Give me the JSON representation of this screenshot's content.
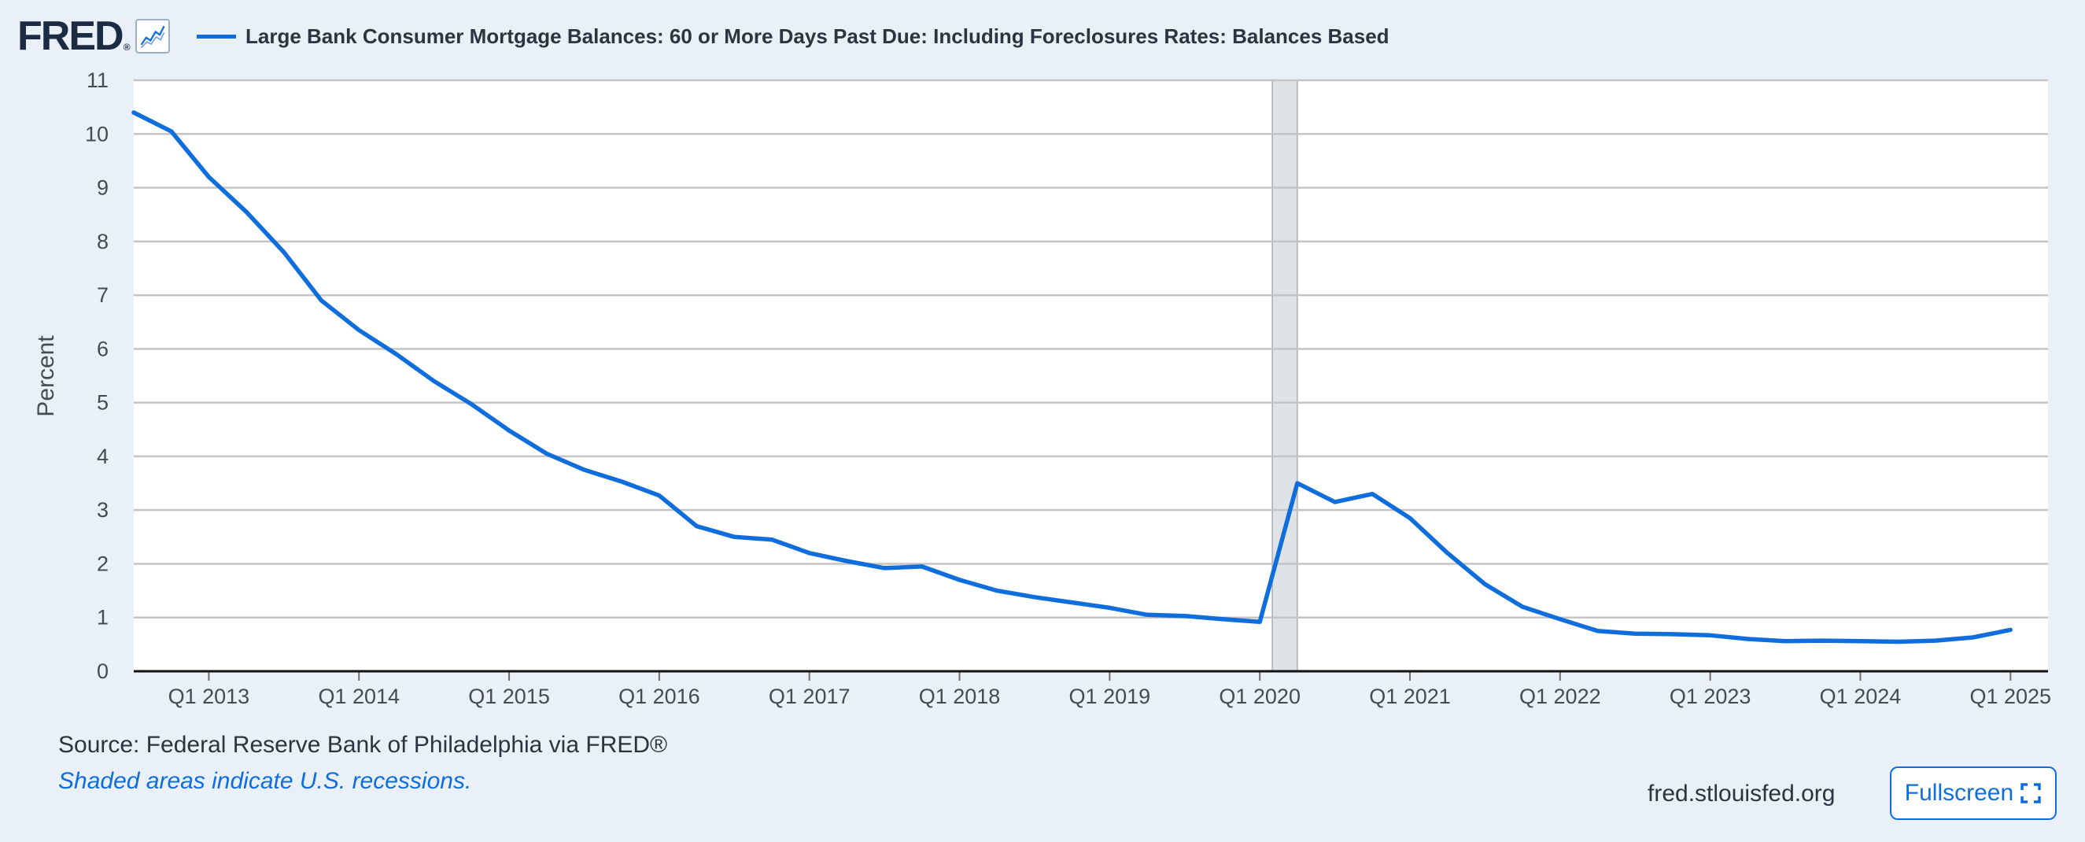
{
  "header": {
    "logo_text": "FRED",
    "logo_mark": "®",
    "graph_icon": "line-graph-icon"
  },
  "legend": {
    "label": "Large Bank Consumer Mortgage Balances: 60 or More Days Past Due: Including Foreclosures Rates: Balances Based",
    "color": "#0f6ddc"
  },
  "footer": {
    "source": "Source: Federal Reserve Bank of Philadelphia via FRED®",
    "recession_note": "Shaded areas indicate U.S. recessions.",
    "site": "fred.stlouisfed.org",
    "fullscreen_label": "Fullscreen",
    "fullscreen_icon": "expand-corners-icon"
  },
  "colors": {
    "background": "#e9f0f8",
    "plot_background": "#ffffff",
    "series": "#0f6ddc",
    "grid": "#c4c4c4",
    "recession_fill": "#dfe3e8"
  },
  "chart_data": {
    "type": "line",
    "xlabel": "",
    "ylabel": "Percent",
    "ylim": [
      0,
      11
    ],
    "yticks": [
      0,
      1,
      2,
      3,
      4,
      5,
      6,
      7,
      8,
      9,
      10,
      11
    ],
    "xlim": [
      "2012-07",
      "2025-04"
    ],
    "xticks": [
      {
        "label": "Q1 2013",
        "value": "2013-01"
      },
      {
        "label": "Q1 2014",
        "value": "2014-01"
      },
      {
        "label": "Q1 2015",
        "value": "2015-01"
      },
      {
        "label": "Q1 2016",
        "value": "2016-01"
      },
      {
        "label": "Q1 2017",
        "value": "2017-01"
      },
      {
        "label": "Q1 2018",
        "value": "2018-01"
      },
      {
        "label": "Q1 2019",
        "value": "2019-01"
      },
      {
        "label": "Q1 2020",
        "value": "2020-01"
      },
      {
        "label": "Q1 2021",
        "value": "2021-01"
      },
      {
        "label": "Q1 2022",
        "value": "2022-01"
      },
      {
        "label": "Q1 2023",
        "value": "2023-01"
      },
      {
        "label": "Q1 2024",
        "value": "2024-01"
      },
      {
        "label": "Q1 2025",
        "value": "2025-01"
      }
    ],
    "grid": true,
    "legend_position": "top",
    "recessions": [
      {
        "start": "2020-02",
        "end": "2020-04"
      }
    ],
    "series": [
      {
        "name": "Large Bank Consumer Mortgage Balances: 60 or More Days Past Due: Including Foreclosures Rates: Balances Based",
        "x": [
          "2012-07",
          "2012-10",
          "2013-01",
          "2013-04",
          "2013-07",
          "2013-10",
          "2014-01",
          "2014-04",
          "2014-07",
          "2014-10",
          "2015-01",
          "2015-04",
          "2015-07",
          "2015-10",
          "2016-01",
          "2016-04",
          "2016-07",
          "2016-10",
          "2017-01",
          "2017-04",
          "2017-07",
          "2017-10",
          "2018-01",
          "2018-04",
          "2018-07",
          "2018-10",
          "2019-01",
          "2019-04",
          "2019-07",
          "2019-10",
          "2020-01",
          "2020-04",
          "2020-07",
          "2020-10",
          "2021-01",
          "2021-04",
          "2021-07",
          "2021-10",
          "2022-01",
          "2022-04",
          "2022-07",
          "2022-10",
          "2023-01",
          "2023-04",
          "2023-07",
          "2023-10",
          "2024-01",
          "2024-04",
          "2024-07",
          "2024-10",
          "2025-01"
        ],
        "values": [
          10.4,
          10.05,
          9.2,
          8.55,
          7.8,
          6.9,
          6.35,
          5.9,
          5.4,
          4.97,
          4.48,
          4.05,
          3.75,
          3.53,
          3.27,
          2.7,
          2.5,
          2.45,
          2.2,
          2.05,
          1.92,
          1.95,
          1.7,
          1.5,
          1.38,
          1.28,
          1.18,
          1.05,
          1.03,
          0.97,
          0.92,
          3.5,
          3.15,
          3.3,
          2.85,
          2.2,
          1.62,
          1.2,
          0.97,
          0.75,
          0.7,
          0.69,
          0.67,
          0.6,
          0.56,
          0.57,
          0.56,
          0.55,
          0.57,
          0.63,
          0.77
        ]
      }
    ]
  }
}
